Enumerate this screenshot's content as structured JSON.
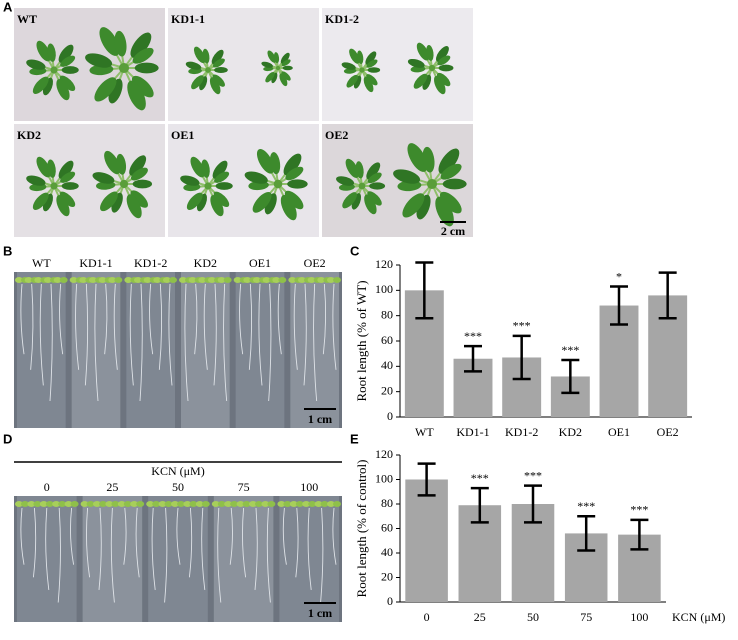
{
  "figure": {
    "panel_labels": [
      "A",
      "B",
      "C",
      "D",
      "E"
    ],
    "panel_a": {
      "labels": [
        "WT",
        "KD1-1",
        "KD1-2",
        "KD2",
        "OE1",
        "OE2"
      ],
      "scale_bar": "2 cm"
    },
    "panel_b": {
      "labels": [
        "WT",
        "KD1-1",
        "KD1-2",
        "KD2",
        "OE1",
        "OE2"
      ],
      "scale_bar": "1 cm"
    },
    "panel_d": {
      "title": "KCN (μM)",
      "labels": [
        "0",
        "25",
        "50",
        "75",
        "100"
      ],
      "scale_bar": "1 cm"
    }
  },
  "chart_data": [
    {
      "type": "bar",
      "ylabel": "Root length (% of WT)",
      "categories": [
        "WT",
        "KD1-1",
        "KD1-2",
        "KD2",
        "OE1",
        "OE2"
      ],
      "values": [
        100,
        46,
        47,
        32,
        88,
        96
      ],
      "errors": [
        22,
        10,
        17,
        13,
        15,
        18
      ],
      "annotations": [
        null,
        "***",
        "***",
        "***",
        "*",
        null
      ],
      "color": "#a6a6a6",
      "ylim": [
        0,
        120
      ],
      "yticks": [
        0,
        20,
        40,
        60,
        80,
        100,
        120
      ]
    },
    {
      "type": "bar",
      "ylabel": "Root length (% of control)",
      "xlabel": "KCN (μM)",
      "categories": [
        "0",
        "25",
        "50",
        "75",
        "100"
      ],
      "values": [
        100,
        79,
        80,
        56,
        55
      ],
      "errors": [
        13,
        14,
        15,
        14,
        12
      ],
      "annotations": [
        null,
        "***",
        "***",
        "***",
        "***"
      ],
      "color": "#a6a6a6",
      "ylim": [
        0,
        120
      ],
      "yticks": [
        0,
        20,
        40,
        60,
        80,
        100,
        120
      ]
    }
  ]
}
